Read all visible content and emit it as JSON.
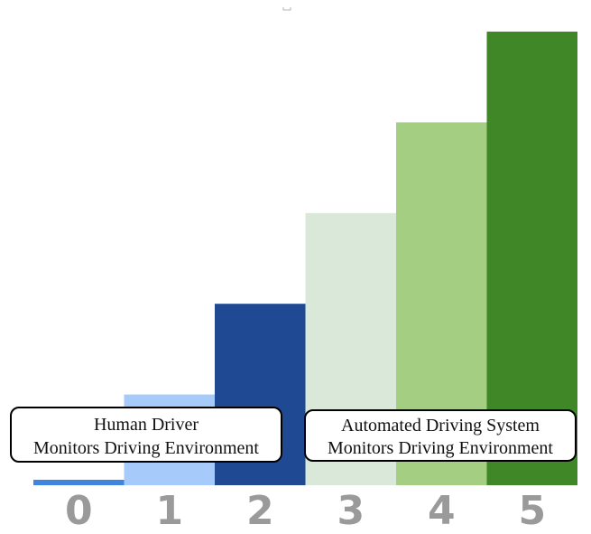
{
  "chart_data": {
    "type": "bar",
    "categories": [
      "0",
      "1",
      "2",
      "3",
      "4",
      "5"
    ],
    "values": [
      0.06,
      1,
      2,
      3,
      4,
      5
    ],
    "colors": [
      "#3f84df",
      "#a6cbfa",
      "#1f4a93",
      "#d9e8d9",
      "#a4cf83",
      "#3f8727"
    ],
    "ylim": [
      0,
      5
    ],
    "grid": false,
    "title": "",
    "xlabel": "",
    "ylabel": "",
    "annotations": [
      {
        "lines": [
          "Human Driver",
          "Monitors Driving Environment"
        ]
      },
      {
        "lines": [
          "Automated Driving System",
          "Monitors Driving Environment"
        ]
      }
    ]
  }
}
